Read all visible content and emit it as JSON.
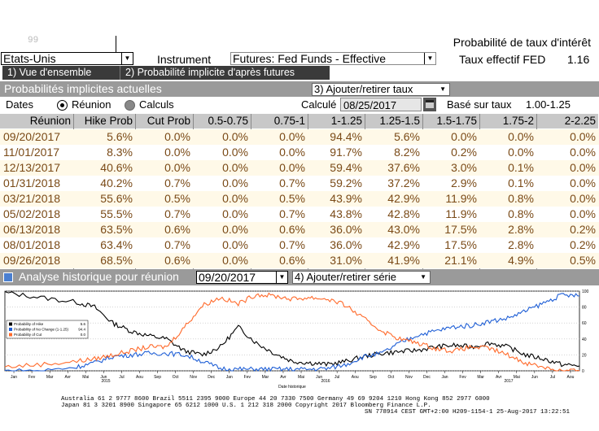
{
  "top": {
    "panel_number": "99",
    "country": "Etats-Unis",
    "instrument_label": "Instrument",
    "instrument": "Futures: Fed Funds - Effective",
    "title": "Probabilité de taux d'intérêt",
    "fed_rate_label": "Taux effectif FED",
    "fed_rate_value": "1.16"
  },
  "tabs": [
    {
      "label": "1) Vue d'ensemble"
    },
    {
      "label": "2) Probabilité implicite d'après futures"
    }
  ],
  "section1": {
    "title": "Probabilités implicites actuelles",
    "add_remove_rates": "3) Ajouter/retirer taux"
  },
  "controls": {
    "dates_label": "Dates",
    "radio_meeting": "Réunion",
    "radio_calc": "Calculs",
    "calc_label": "Calculé",
    "calc_date": "08/25/2017",
    "base_label": "Basé sur taux",
    "base_value": "1.00-1.25"
  },
  "table": {
    "headers": [
      "Réunion",
      "Hike Prob",
      "Cut Prob",
      "0.5-0.75",
      "0.75-1",
      "1-1.25",
      "1.25-1.5",
      "1.5-1.75",
      "1.75-2",
      "2-2.25"
    ],
    "rows": [
      [
        "09/20/2017",
        "5.6%",
        "0.0%",
        "0.0%",
        "0.0%",
        "94.4%",
        "5.6%",
        "0.0%",
        "0.0%",
        "0.0%"
      ],
      [
        "11/01/2017",
        "8.3%",
        "0.0%",
        "0.0%",
        "0.0%",
        "91.7%",
        "8.2%",
        "0.2%",
        "0.0%",
        "0.0%"
      ],
      [
        "12/13/2017",
        "40.6%",
        "0.0%",
        "0.0%",
        "0.0%",
        "59.4%",
        "37.6%",
        "3.0%",
        "0.1%",
        "0.0%"
      ],
      [
        "01/31/2018",
        "40.2%",
        "0.7%",
        "0.0%",
        "0.7%",
        "59.2%",
        "37.2%",
        "2.9%",
        "0.1%",
        "0.0%"
      ],
      [
        "03/21/2018",
        "55.6%",
        "0.5%",
        "0.0%",
        "0.5%",
        "43.9%",
        "42.9%",
        "11.9%",
        "0.8%",
        "0.0%"
      ],
      [
        "05/02/2018",
        "55.5%",
        "0.7%",
        "0.0%",
        "0.7%",
        "43.8%",
        "42.8%",
        "11.9%",
        "0.8%",
        "0.0%"
      ],
      [
        "06/13/2018",
        "63.5%",
        "0.6%",
        "0.0%",
        "0.6%",
        "36.0%",
        "43.0%",
        "17.5%",
        "2.8%",
        "0.2%"
      ],
      [
        "08/01/2018",
        "63.4%",
        "0.7%",
        "0.0%",
        "0.7%",
        "36.0%",
        "42.9%",
        "17.5%",
        "2.8%",
        "0.2%"
      ],
      [
        "09/26/2018",
        "68.5%",
        "0.6%",
        "0.0%",
        "0.6%",
        "31.0%",
        "41.9%",
        "21.1%",
        "4.9%",
        "0.5%"
      ]
    ]
  },
  "section2": {
    "title": "Analyse historique pour réunion",
    "meeting_date": "09/20/2017",
    "add_remove_series": "4) Ajouter/retirer série"
  },
  "chart_data": {
    "type": "line",
    "xlabel": "Date historique",
    "ylim": [
      0,
      100
    ],
    "y_ticks": [
      "0",
      "20",
      "40",
      "60",
      "80",
      "100"
    ],
    "x_tick_labels": [
      "Jan",
      "Fev",
      "Mar",
      "Avr",
      "Mai",
      "Jun",
      "Jul",
      "Aou",
      "Sep",
      "Oct",
      "Nov",
      "Dec",
      "Jan",
      "Fev",
      "Mar",
      "Avr",
      "Mai",
      "Jun",
      "Jul",
      "Aou",
      "Sep",
      "Oct",
      "Nov",
      "Dec",
      "Jan",
      "Fev",
      "Mar",
      "Avr",
      "Mai",
      "Jun",
      "Jul",
      "Aou"
    ],
    "year_labels": [
      "2015",
      "2016",
      "2017"
    ],
    "legend": {
      "placement": "top-left",
      "entries": [
        {
          "name": "Probability of Hike",
          "value": "5.6"
        },
        {
          "name": "Probability of No Change (1-1.25)",
          "value": "94.4"
        },
        {
          "name": "Probability of Cut",
          "value": "0.0"
        }
      ]
    },
    "series": [
      {
        "name": "Probability of Hike",
        "color": "#000000",
        "points": [
          [
            0,
            98
          ],
          [
            2,
            92
          ],
          [
            4,
            86
          ],
          [
            5,
            80
          ],
          [
            6,
            60
          ],
          [
            7,
            50
          ],
          [
            8,
            44
          ],
          [
            9,
            40
          ],
          [
            10,
            25
          ],
          [
            11,
            20
          ],
          [
            12,
            30
          ],
          [
            13,
            55
          ],
          [
            14,
            35
          ],
          [
            15,
            22
          ],
          [
            16,
            12
          ],
          [
            17,
            10
          ],
          [
            18,
            8
          ],
          [
            19,
            12
          ],
          [
            20,
            18
          ],
          [
            21,
            22
          ],
          [
            22,
            24
          ],
          [
            23,
            26
          ],
          [
            24,
            30
          ],
          [
            25,
            32
          ],
          [
            26,
            30
          ],
          [
            27,
            35
          ],
          [
            28,
            30
          ],
          [
            29,
            20
          ],
          [
            30,
            15
          ],
          [
            31,
            8
          ],
          [
            32,
            6
          ]
        ]
      },
      {
        "name": "Probability of No Change (1-1.25)",
        "color": "#1f5fd6",
        "points": [
          [
            0,
            0
          ],
          [
            2,
            0
          ],
          [
            4,
            5
          ],
          [
            5,
            10
          ],
          [
            6,
            18
          ],
          [
            7,
            20
          ],
          [
            8,
            22
          ],
          [
            9,
            22
          ],
          [
            10,
            20
          ],
          [
            11,
            12
          ],
          [
            12,
            3
          ],
          [
            13,
            2
          ],
          [
            14,
            2
          ],
          [
            15,
            2
          ],
          [
            16,
            2
          ],
          [
            17,
            2
          ],
          [
            18,
            3
          ],
          [
            19,
            8
          ],
          [
            20,
            18
          ],
          [
            21,
            22
          ],
          [
            22,
            35
          ],
          [
            23,
            45
          ],
          [
            24,
            50
          ],
          [
            25,
            55
          ],
          [
            26,
            57
          ],
          [
            27,
            62
          ],
          [
            28,
            66
          ],
          [
            29,
            75
          ],
          [
            30,
            85
          ],
          [
            31,
            95
          ],
          [
            32,
            94
          ]
        ]
      },
      {
        "name": "Probability of Cut",
        "color": "#ff6a2b",
        "points": [
          [
            0,
            5
          ],
          [
            2,
            8
          ],
          [
            4,
            12
          ],
          [
            5,
            15
          ],
          [
            6,
            20
          ],
          [
            7,
            25
          ],
          [
            8,
            30
          ],
          [
            9,
            30
          ],
          [
            10,
            55
          ],
          [
            11,
            82
          ],
          [
            12,
            92
          ],
          [
            13,
            84
          ],
          [
            14,
            96
          ],
          [
            15,
            94
          ],
          [
            16,
            90
          ],
          [
            17,
            92
          ],
          [
            18,
            90
          ],
          [
            19,
            82
          ],
          [
            20,
            65
          ],
          [
            21,
            50
          ],
          [
            22,
            40
          ],
          [
            23,
            35
          ],
          [
            24,
            28
          ],
          [
            25,
            25
          ],
          [
            26,
            30
          ],
          [
            27,
            28
          ],
          [
            28,
            20
          ],
          [
            29,
            10
          ],
          [
            30,
            5
          ],
          [
            31,
            0
          ],
          [
            32,
            0
          ]
        ]
      }
    ]
  },
  "footer": {
    "line1": "Australia 61 2 9777 8600 Brazil 5511 2395 9000 Europe 44 20 7330 7500 Germany 49 69 9204 1210 Hong Kong 852 2977 6000",
    "line2": "Japan 81 3 3201 8900        Singapore 65 6212 1000        U.S. 1 212 318 2000        Copyright 2017 Bloomberg Finance L.P.",
    "line3": "SN 778914 CEST GMT+2:00 H209-1154-1 25-Aug-2017 13:22:51"
  },
  "colors": {
    "tab_bg": "#3a3a3a",
    "section_bar": "#9a9a9a",
    "header_bg": "#c8c8c8",
    "cell_text": "#7a4a17",
    "hike_line": "#000000",
    "no_change_line": "#1f5fd6",
    "cut_line": "#ff6a2b"
  }
}
